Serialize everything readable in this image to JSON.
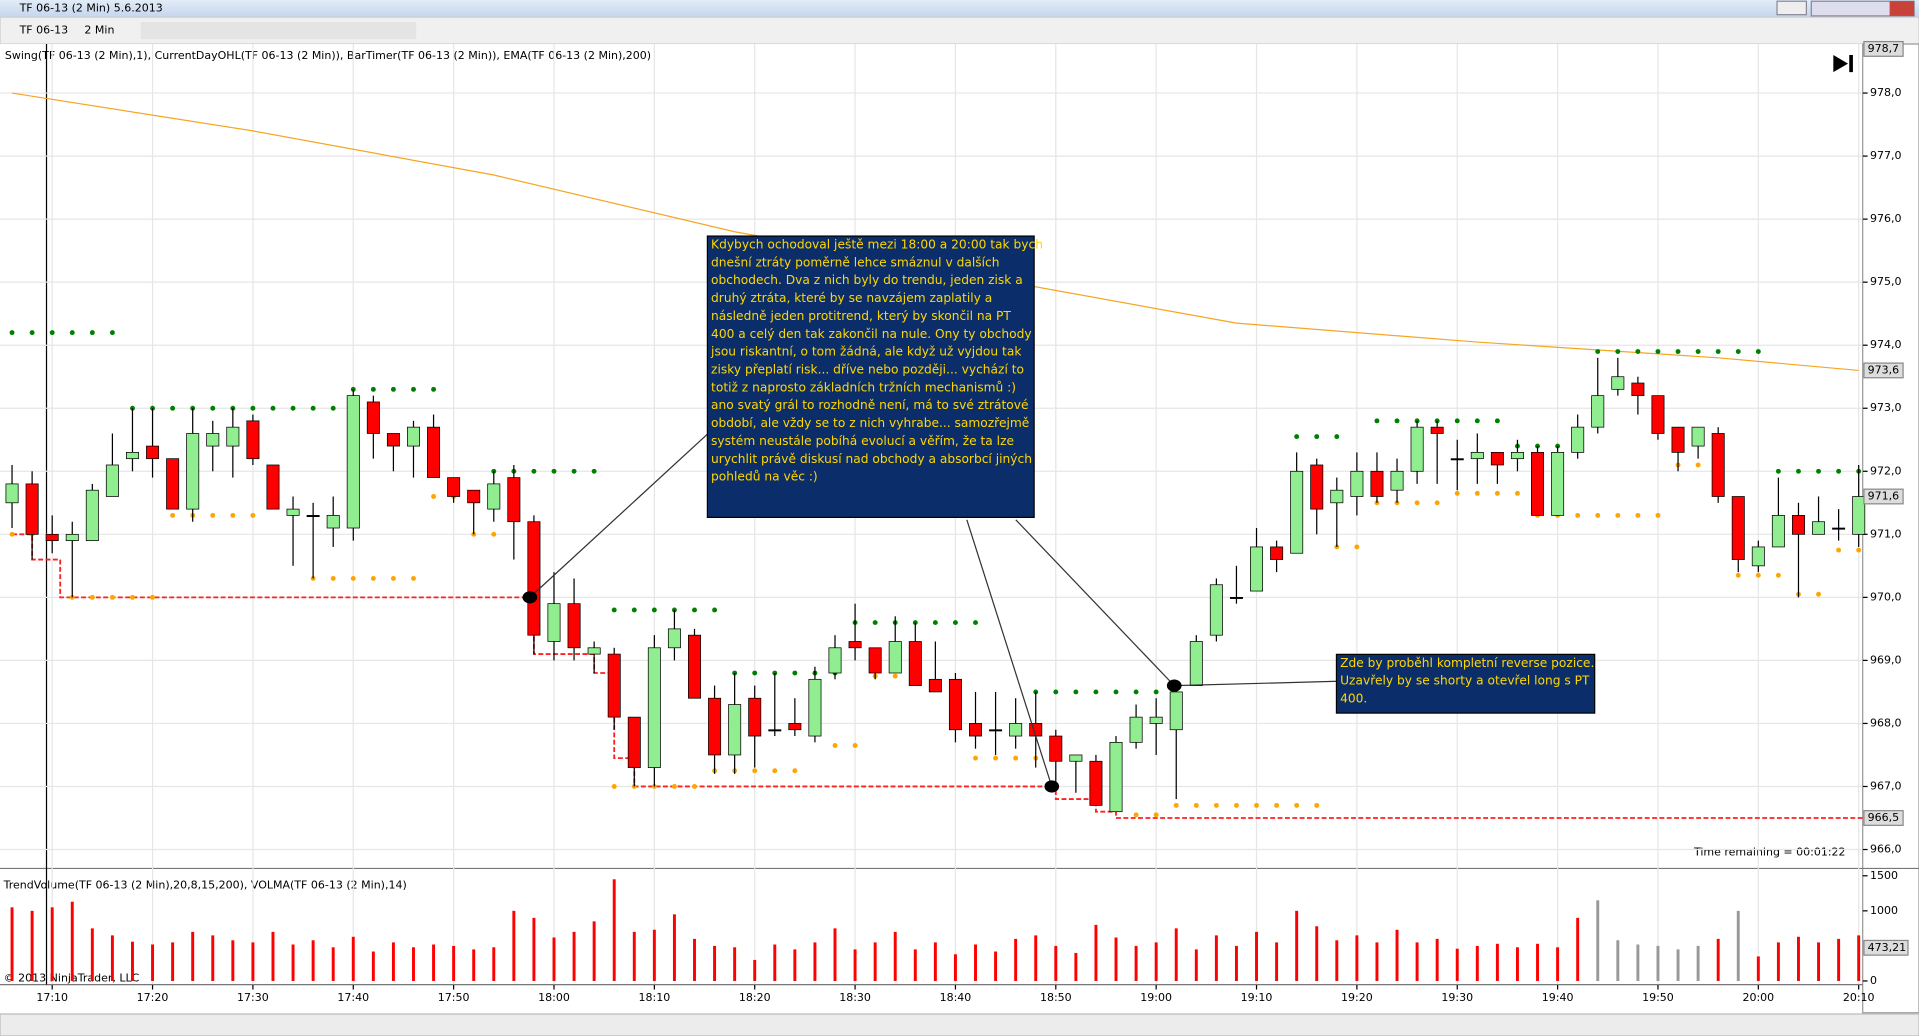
{
  "window": {
    "title": "TF 06-13 (2 Min)  5.6.2013",
    "instrument": "TF 06-13",
    "interval": "2 Min"
  },
  "chart_data": {
    "type": "candlestick",
    "indicators": "Swing(TF 06-13 (2 Min),1), CurrentDayOHL(TF 06-13 (2 Min)), BarTimer(TF 06-13 (2 Min)), EMA(TF 06-13 (2 Min),200)",
    "up_color": "#90ee90",
    "down_color": "#ff0000",
    "candles": [
      [
        971.5,
        972.1,
        971.1,
        971.8
      ],
      [
        971.8,
        972.0,
        970.6,
        971.0
      ],
      [
        971.0,
        971.3,
        970.7,
        970.9
      ],
      [
        970.9,
        971.2,
        970.0,
        971.0
      ],
      [
        970.9,
        971.8,
        970.9,
        971.7
      ],
      [
        971.6,
        972.6,
        971.6,
        972.1
      ],
      [
        972.2,
        973.0,
        972.0,
        972.3
      ],
      [
        972.4,
        973.0,
        971.9,
        972.2
      ],
      [
        972.2,
        972.2,
        971.4,
        971.4
      ],
      [
        971.4,
        973.0,
        971.2,
        972.6
      ],
      [
        972.4,
        972.8,
        972.0,
        972.6
      ],
      [
        972.4,
        973.0,
        971.9,
        972.7
      ],
      [
        972.8,
        972.9,
        972.1,
        972.2
      ],
      [
        972.1,
        972.1,
        971.4,
        971.4
      ],
      [
        971.3,
        971.6,
        970.5,
        971.4
      ],
      [
        971.3,
        971.5,
        970.3,
        971.3
      ],
      [
        971.1,
        971.6,
        970.8,
        971.3
      ],
      [
        971.1,
        973.3,
        970.9,
        973.2
      ],
      [
        973.1,
        973.2,
        972.2,
        972.6
      ],
      [
        972.6,
        972.6,
        972.0,
        972.4
      ],
      [
        972.4,
        972.8,
        971.9,
        972.7
      ],
      [
        972.7,
        972.9,
        971.9,
        971.9
      ],
      [
        971.9,
        971.9,
        971.5,
        971.6
      ],
      [
        971.7,
        971.7,
        971.0,
        971.5
      ],
      [
        971.4,
        972.0,
        971.2,
        971.8
      ],
      [
        971.9,
        972.1,
        970.6,
        971.2
      ],
      [
        971.2,
        971.3,
        969.1,
        969.4
      ],
      [
        969.3,
        970.4,
        969.0,
        969.9
      ],
      [
        969.9,
        970.3,
        969.0,
        969.2
      ],
      [
        969.1,
        969.3,
        968.8,
        969.2
      ],
      [
        969.1,
        969.2,
        967.9,
        968.1
      ],
      [
        968.1,
        968.1,
        967.0,
        967.3
      ],
      [
        967.3,
        969.4,
        967.0,
        969.2
      ],
      [
        969.2,
        969.8,
        969.0,
        969.5
      ],
      [
        969.4,
        969.5,
        968.4,
        968.4
      ],
      [
        968.4,
        968.6,
        967.2,
        967.5
      ],
      [
        967.5,
        968.8,
        967.2,
        968.3
      ],
      [
        968.4,
        968.6,
        967.3,
        967.8
      ],
      [
        967.9,
        968.8,
        967.8,
        967.9
      ],
      [
        968.0,
        968.4,
        967.8,
        967.9
      ],
      [
        967.8,
        968.9,
        967.7,
        968.7
      ],
      [
        968.8,
        969.4,
        968.7,
        969.2
      ],
      [
        969.3,
        969.9,
        969.0,
        969.2
      ],
      [
        969.2,
        969.2,
        968.7,
        968.8
      ],
      [
        968.8,
        969.7,
        968.8,
        969.3
      ],
      [
        969.3,
        969.6,
        968.6,
        968.6
      ],
      [
        968.7,
        969.3,
        968.5,
        968.5
      ],
      [
        968.7,
        968.8,
        967.7,
        967.9
      ],
      [
        968.0,
        968.5,
        967.6,
        967.8
      ],
      [
        967.9,
        968.5,
        967.5,
        967.9
      ],
      [
        967.8,
        968.4,
        967.6,
        968.0
      ],
      [
        968.0,
        968.5,
        967.3,
        967.8
      ],
      [
        967.8,
        967.9,
        967.0,
        967.4
      ],
      [
        967.4,
        967.5,
        966.9,
        967.5
      ],
      [
        967.4,
        967.5,
        966.7,
        966.7
      ],
      [
        966.6,
        967.8,
        966.6,
        967.7
      ],
      [
        967.7,
        968.3,
        967.6,
        968.1
      ],
      [
        968.0,
        968.4,
        967.5,
        968.1
      ],
      [
        967.9,
        968.6,
        966.8,
        968.5
      ],
      [
        968.6,
        969.4,
        968.6,
        969.3
      ],
      [
        969.4,
        970.3,
        969.3,
        970.2
      ],
      [
        970.0,
        970.5,
        969.9,
        970.0
      ],
      [
        970.1,
        971.1,
        970.1,
        970.8
      ],
      [
        970.8,
        970.9,
        970.4,
        970.6
      ],
      [
        970.7,
        972.3,
        970.7,
        972.0
      ],
      [
        972.1,
        972.2,
        971.0,
        971.4
      ],
      [
        971.5,
        971.9,
        970.8,
        971.7
      ],
      [
        971.6,
        972.3,
        971.3,
        972.0
      ],
      [
        972.0,
        972.3,
        971.5,
        971.6
      ],
      [
        971.7,
        972.2,
        971.5,
        972.0
      ],
      [
        972.0,
        972.8,
        971.8,
        972.7
      ],
      [
        972.7,
        972.8,
        971.8,
        972.6
      ],
      [
        972.2,
        972.5,
        971.7,
        972.2
      ],
      [
        972.2,
        972.6,
        971.8,
        972.3
      ],
      [
        972.3,
        972.3,
        971.8,
        972.1
      ],
      [
        972.2,
        972.5,
        972.0,
        972.3
      ],
      [
        972.3,
        972.4,
        971.3,
        971.3
      ],
      [
        971.3,
        972.4,
        971.3,
        972.3
      ],
      [
        972.3,
        972.9,
        972.2,
        972.7
      ],
      [
        972.7,
        973.8,
        972.6,
        973.2
      ],
      [
        973.3,
        973.8,
        973.2,
        973.5
      ],
      [
        973.4,
        973.5,
        972.9,
        973.2
      ],
      [
        973.2,
        973.2,
        972.5,
        972.6
      ],
      [
        972.7,
        972.7,
        972.0,
        972.3
      ],
      [
        972.4,
        972.7,
        972.2,
        972.7
      ],
      [
        972.6,
        972.7,
        971.5,
        971.6
      ],
      [
        971.6,
        971.6,
        970.4,
        970.6
      ],
      [
        970.5,
        970.9,
        970.4,
        970.8
      ],
      [
        970.8,
        971.9,
        970.8,
        971.3
      ],
      [
        971.3,
        971.5,
        970.0,
        971.0
      ],
      [
        971.0,
        971.6,
        971.0,
        971.2
      ],
      [
        971.1,
        971.4,
        970.9,
        971.1
      ],
      [
        971.0,
        972.1,
        970.8,
        971.6
      ]
    ],
    "xlim": [
      -0.6,
      92.2
    ],
    "ylim": [
      965.7,
      978.7
    ],
    "yticks": [
      {
        "value": 966,
        "label": "966,0"
      },
      {
        "value": 967,
        "label": "967,0"
      },
      {
        "value": 968,
        "label": "968,0"
      },
      {
        "value": 969,
        "label": "969,0"
      },
      {
        "value": 970,
        "label": "970,0"
      },
      {
        "value": 971,
        "label": "971,0"
      },
      {
        "value": 972,
        "label": "972,0"
      },
      {
        "value": 973,
        "label": "973,0"
      },
      {
        "value": 974,
        "label": "974,0"
      },
      {
        "value": 975,
        "label": "975,0"
      },
      {
        "value": 976,
        "label": "976,0"
      },
      {
        "value": 977,
        "label": "977,0"
      },
      {
        "value": 978,
        "label": "978,0"
      }
    ],
    "xticks": [
      {
        "value": 2,
        "label": "17:10"
      },
      {
        "value": 7,
        "label": "17:20"
      },
      {
        "value": 12,
        "label": "17:30"
      },
      {
        "value": 17,
        "label": "17:40"
      },
      {
        "value": 22,
        "label": "17:50"
      },
      {
        "value": 27,
        "label": "18:00"
      },
      {
        "value": 32,
        "label": "18:10"
      },
      {
        "value": 37,
        "label": "18:20"
      },
      {
        "value": 42,
        "label": "18:30"
      },
      {
        "value": 47,
        "label": "18:40"
      },
      {
        "value": 52,
        "label": "18:50"
      },
      {
        "value": 57,
        "label": "19:00"
      },
      {
        "value": 62,
        "label": "19:10"
      },
      {
        "value": 67,
        "label": "19:20"
      },
      {
        "value": 72,
        "label": "19:30"
      },
      {
        "value": 77,
        "label": "19:40"
      },
      {
        "value": 82,
        "label": "19:50"
      },
      {
        "value": 87,
        "label": "20:00"
      },
      {
        "value": 92,
        "label": "20:10"
      }
    ],
    "grid": true,
    "ema": {
      "name": "EMA",
      "color": "#f5a623",
      "x": [
        0,
        12,
        24,
        36,
        48,
        61,
        73,
        85,
        92
      ],
      "values": [
        978.0,
        977.4,
        976.7,
        975.8,
        975.1,
        974.35,
        974.05,
        973.8,
        973.6
      ]
    },
    "stop": {
      "color": "#ff2020",
      "x": [
        0,
        1,
        2.4,
        26,
        29,
        30,
        31,
        52,
        54,
        55
      ],
      "values": [
        971.0,
        970.6,
        970.0,
        969.1,
        968.8,
        967.45,
        967.0,
        966.8,
        966.6,
        966.5
      ]
    },
    "swing_high_color": "#008000",
    "swing_low_color": "#ffa500",
    "swing_highs": [
      [
        0,
        5,
        974.2
      ],
      [
        6,
        17,
        973.0
      ],
      [
        17,
        21,
        973.3
      ],
      [
        24,
        29,
        972.0
      ],
      [
        30,
        35,
        969.8
      ],
      [
        36,
        41,
        968.8
      ],
      [
        42,
        48,
        969.6
      ],
      [
        51,
        57,
        968.5
      ],
      [
        64,
        66,
        972.55
      ],
      [
        68,
        74,
        972.8
      ],
      [
        75,
        77,
        972.4
      ],
      [
        79,
        87,
        973.9
      ],
      [
        88,
        92,
        972.0
      ]
    ],
    "swing_lows": [
      [
        0,
        1,
        971.0
      ],
      [
        3,
        7,
        970.0
      ],
      [
        8,
        12,
        971.3
      ],
      [
        15,
        20,
        970.3
      ],
      [
        21,
        22,
        971.6
      ],
      [
        23,
        24,
        971.0
      ],
      [
        30,
        34,
        967.0
      ],
      [
        35,
        39,
        967.25
      ],
      [
        41,
        42,
        967.65
      ],
      [
        43,
        44,
        968.75
      ],
      [
        48,
        52,
        967.45
      ],
      [
        56,
        57,
        966.55
      ],
      [
        58,
        65,
        966.7
      ],
      [
        66,
        67,
        970.8
      ],
      [
        68,
        71,
        971.5
      ],
      [
        72,
        75,
        971.65
      ],
      [
        76,
        82,
        971.3
      ],
      [
        83,
        84,
        972.1
      ],
      [
        86,
        88,
        970.35
      ],
      [
        89,
        90,
        970.05
      ],
      [
        91,
        92,
        970.75
      ]
    ],
    "price_labels": [
      {
        "value": 978.7,
        "label": "978,7"
      },
      {
        "value": 973.6,
        "label": "973,6"
      },
      {
        "value": 971.6,
        "label": "971,6"
      },
      {
        "value": 966.5,
        "label": "966,5"
      }
    ],
    "time_remaining": "Time remaining = 00:01:22",
    "annotations": [
      {
        "text": [
          "Kdybych ochodoval ještě mezi 18:00 a 20:00 tak bych",
          "dnešní ztráty poměrně lehce smáznul v dalších",
          "obchodech. Dva z nich byly do trendu, jeden zisk a",
          "druhý ztráta, které by se navzájem zaplatily a",
          "následně jeden protitrend, který by skončil na PT",
          "400 a celý den tak zakončil na nule.  Ony ty obchody",
          "jsou riskantní, o tom žádná, ale když už vyjdou tak",
          "zisky přeplatí risk... dříve nebo později... vychází to",
          "totiž z naprosto základních tržních mechanismů :)",
          "ano svatý grál to rozhodně není, má to své ztrátové",
          "období, ale vždy se to z nich vyhrabe... samozřejmě",
          "systém neustále pobíhá evolucí a věřím, že ta lze",
          "urychlit právě diskusí nad obchody a absorbcí jiných",
          "pohledů na věc :)"
        ],
        "points": [
          [
            25.8,
            970.0
          ],
          [
            51.8,
            967.0
          ]
        ]
      },
      {
        "text": [
          "Zde by proběhl kompletní reverse pozice.",
          "Uzavřely by se shorty a otevřel long s PT",
          "400."
        ],
        "points": [
          [
            57.9,
            968.6
          ]
        ]
      }
    ],
    "volume": {
      "title": "TrendVolume(TF 06-13 (2 Min),20,8,15,200), VOLMA(TF 06-13 (2 Min),14)",
      "values": [
        1050,
        1000,
        1050,
        1130,
        750,
        650,
        560,
        520,
        550,
        700,
        650,
        580,
        550,
        700,
        520,
        580,
        480,
        630,
        420,
        550,
        480,
        520,
        500,
        450,
        480,
        1000,
        900,
        620,
        700,
        850,
        1450,
        700,
        730,
        950,
        600,
        500,
        480,
        300,
        520,
        450,
        550,
        750,
        450,
        550,
        700,
        450,
        550,
        380,
        520,
        420,
        600,
        650,
        500,
        400,
        800,
        620,
        500,
        550,
        750,
        450,
        650,
        500,
        700,
        550,
        1000,
        780,
        580,
        650,
        550,
        730,
        550,
        600,
        460,
        500,
        530,
        480,
        530,
        480,
        900,
        1150,
        580,
        520,
        500,
        450,
        500,
        600,
        1000,
        350,
        550,
        630,
        550,
        600,
        650
      ],
      "colors": [
        "#f00",
        "#f00",
        "#f00",
        "#f00",
        "#f00",
        "#f00",
        "#f00",
        "#f00",
        "#f00",
        "#f00",
        "#f00",
        "#f00",
        "#f00",
        "#f00",
        "#f00",
        "#f00",
        "#f00",
        "#f00",
        "#f00",
        "#f00",
        "#f00",
        "#f00",
        "#f00",
        "#f00",
        "#f00",
        "#f00",
        "#f00",
        "#f00",
        "#f00",
        "#f00",
        "#f00",
        "#f00",
        "#f00",
        "#f00",
        "#f00",
        "#f00",
        "#f00",
        "#f00",
        "#f00",
        "#f00",
        "#f00",
        "#f00",
        "#f00",
        "#f00",
        "#f00",
        "#f00",
        "#f00",
        "#f00",
        "#f00",
        "#f00",
        "#f00",
        "#f00",
        "#f00",
        "#f00",
        "#f00",
        "#f00",
        "#f00",
        "#f00",
        "#f00",
        "#f00",
        "#f00",
        "#f00",
        "#f00",
        "#f00",
        "#f00",
        "#f00",
        "#f00",
        "#f00",
        "#f00",
        "#f00",
        "#f00",
        "#f00",
        "#f00",
        "#f00",
        "#f00",
        "#f00",
        "#f00",
        "#f00",
        "#f00",
        "#999",
        "#999",
        "#999",
        "#999",
        "#999",
        "#999",
        "#f00",
        "#999",
        "#f00",
        "#f00",
        "#f00",
        "#f00",
        "#f00",
        "#f00"
      ],
      "ylim": [
        0,
        1570
      ],
      "yticks": [
        0,
        1000,
        1500
      ],
      "last_label": {
        "value": 473.21,
        "label": "473,21"
      }
    },
    "copyright": "© 2013 NinjaTrader, LLC"
  }
}
